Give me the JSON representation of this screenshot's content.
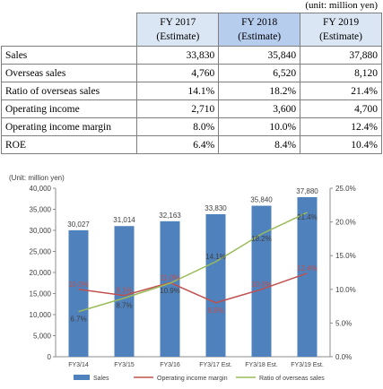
{
  "unit_note": "(unit: million yen)",
  "table": {
    "columns": [
      {
        "year": "FY 2017",
        "note": "(Estimate)"
      },
      {
        "year": "FY 2018",
        "note": "(Estimate)"
      },
      {
        "year": "FY 2019",
        "note": "(Estimate)"
      }
    ],
    "rows": [
      {
        "label": "Sales",
        "values": [
          "33,830",
          "35,840",
          "37,880"
        ]
      },
      {
        "label": "Overseas sales",
        "values": [
          "4,760",
          "6,520",
          "8,120"
        ]
      },
      {
        "label": "Ratio of overseas sales",
        "values": [
          "14.1%",
          "18.2%",
          "21.4%"
        ]
      },
      {
        "label": "Operating income",
        "values": [
          "2,710",
          "3,600",
          "4,700"
        ]
      },
      {
        "label": "Operating income margin",
        "values": [
          "8.0%",
          "10.0%",
          "12.4%"
        ]
      },
      {
        "label": "ROE",
        "values": [
          "6.4%",
          "8.4%",
          "10.4%"
        ]
      }
    ]
  },
  "chart_data": {
    "type": "bar",
    "unit_label": "(Unit: million yen)",
    "categories": [
      "FY3/14",
      "FY3/15",
      "FY3/16",
      "FY3/17 Est.",
      "FY3/18 Est.",
      "FY3/19 Est."
    ],
    "series": [
      {
        "name": "Sales",
        "type": "bar",
        "axis": "left",
        "color": "#4f81bd",
        "values": [
          30027,
          31014,
          32163,
          33830,
          35840,
          37880
        ],
        "labels": [
          "30,027",
          "31,014",
          "32,163",
          "33,830",
          "35,840",
          "37,880"
        ]
      },
      {
        "name": "Operating income margin",
        "type": "line",
        "axis": "right",
        "color": "#c0504d",
        "values": [
          10.0,
          9.1,
          11.0,
          8.0,
          10.0,
          12.4
        ],
        "labels": [
          "10.0%",
          "9.1%",
          "11.0%",
          "8.0%",
          "10.0%",
          "12.4%"
        ]
      },
      {
        "name": "Ratio of overseas sales",
        "type": "line",
        "axis": "right",
        "color": "#9bbb59",
        "values": [
          6.7,
          8.7,
          10.9,
          14.1,
          18.2,
          21.4
        ],
        "labels": [
          "6.7%",
          "8.7%",
          "10.9%",
          "14.1%",
          "18.2%",
          "21.4%"
        ]
      }
    ],
    "left_axis": {
      "min": 0,
      "max": 40000,
      "step": 5000,
      "ticks": [
        "0",
        "5,000",
        "10,000",
        "15,000",
        "20,000",
        "25,000",
        "30,000",
        "35,000",
        "40,000"
      ]
    },
    "right_axis": {
      "min": 0,
      "max": 25,
      "step": 5,
      "ticks": [
        "0.0%",
        "5.0%",
        "10.0%",
        "15.0%",
        "20.0%",
        "25.0%"
      ]
    },
    "grid": false,
    "legend_position": "bottom"
  }
}
